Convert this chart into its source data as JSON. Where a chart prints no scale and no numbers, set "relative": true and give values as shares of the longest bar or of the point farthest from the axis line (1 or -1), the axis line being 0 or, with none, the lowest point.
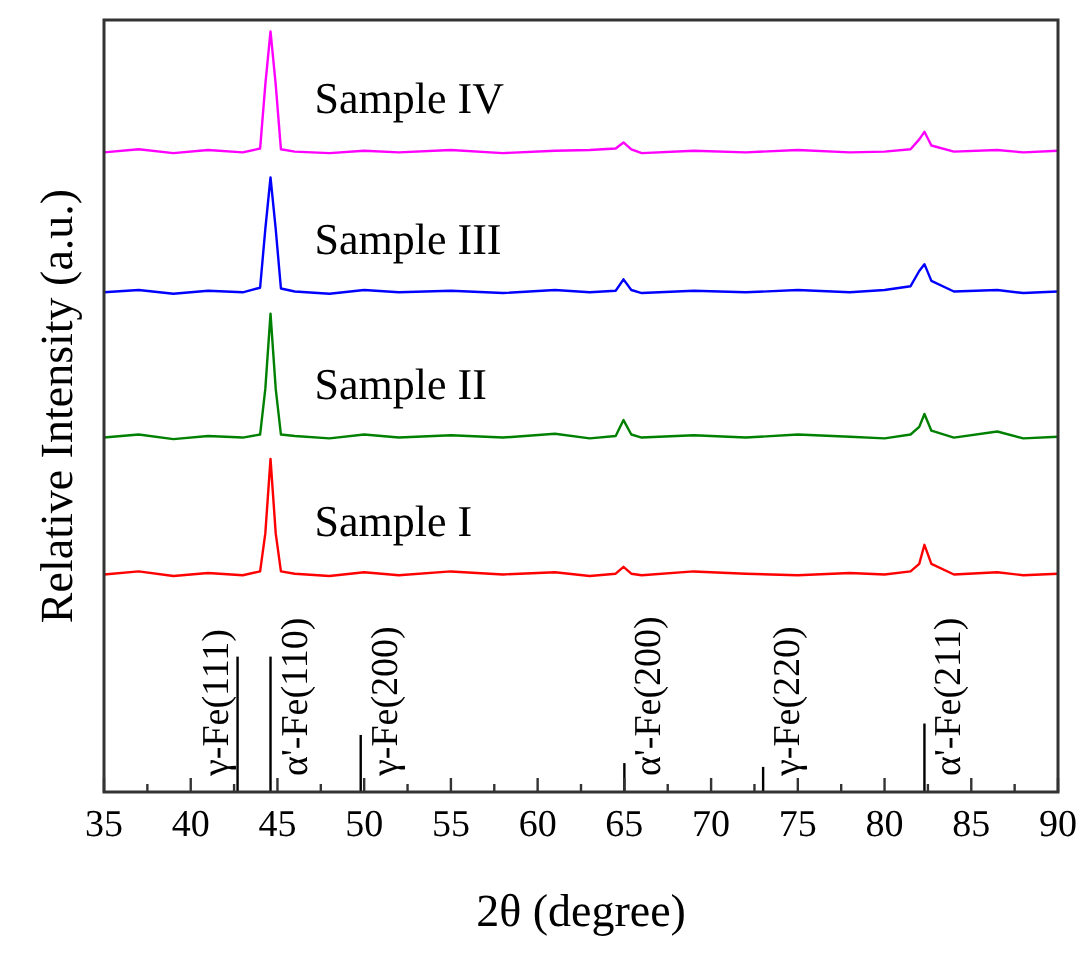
{
  "chart_data": {
    "type": "line",
    "relative": true,
    "xlabel": "2θ (degree)",
    "ylabel": "Relative Intensity (a.u.)",
    "xlim": [
      35,
      90
    ],
    "xticks": [
      35,
      {
        "value": 37.5,
        "label": null
      },
      40,
      {
        "value": 42.5,
        "label": null
      },
      45,
      {
        "value": 47.5,
        "label": null
      },
      50,
      {
        "value": 52.5,
        "label": null
      },
      55,
      {
        "value": 57.5,
        "label": null
      },
      60,
      {
        "value": 62.5,
        "label": null
      },
      65,
      {
        "value": 67.5,
        "label": null
      },
      70,
      {
        "value": 72.5,
        "label": null
      },
      75,
      {
        "value": 77.5,
        "label": null
      },
      80,
      {
        "value": 82.5,
        "label": null
      },
      85,
      {
        "value": 87.5,
        "label": null
      },
      90
    ],
    "x": [
      35,
      37,
      39,
      41,
      43,
      44.0,
      44.3,
      44.6,
      44.9,
      45.2,
      46,
      48,
      50,
      52,
      55,
      58,
      61,
      63,
      64.5,
      64.95,
      65.4,
      66,
      69,
      72,
      75,
      78,
      80,
      81.5,
      82.0,
      82.3,
      82.7,
      84,
      86.5,
      88,
      90
    ],
    "series": [
      {
        "name": "Sample I",
        "color": "#ff0000",
        "values": [
          0.286,
          0.29,
          0.284,
          0.288,
          0.285,
          0.29,
          0.34,
          0.438,
          0.34,
          0.29,
          0.287,
          0.284,
          0.289,
          0.285,
          0.29,
          0.286,
          0.289,
          0.284,
          0.287,
          0.296,
          0.287,
          0.285,
          0.29,
          0.287,
          0.285,
          0.288,
          0.286,
          0.29,
          0.3,
          0.325,
          0.3,
          0.286,
          0.289,
          0.285,
          0.287
        ]
      },
      {
        "name": "Sample II",
        "color": "#008000",
        "values": [
          0.466,
          0.47,
          0.464,
          0.468,
          0.466,
          0.47,
          0.53,
          0.629,
          0.53,
          0.47,
          0.468,
          0.465,
          0.47,
          0.466,
          0.469,
          0.466,
          0.471,
          0.465,
          0.468,
          0.489,
          0.47,
          0.466,
          0.469,
          0.466,
          0.47,
          0.467,
          0.465,
          0.47,
          0.48,
          0.497,
          0.475,
          0.466,
          0.474,
          0.465,
          0.467
        ]
      },
      {
        "name": "Sample III",
        "color": "#0000ff",
        "values": [
          0.657,
          0.66,
          0.655,
          0.659,
          0.657,
          0.663,
          0.74,
          0.808,
          0.74,
          0.662,
          0.658,
          0.655,
          0.66,
          0.657,
          0.659,
          0.656,
          0.66,
          0.657,
          0.659,
          0.674,
          0.66,
          0.656,
          0.659,
          0.657,
          0.66,
          0.657,
          0.66,
          0.665,
          0.685,
          0.694,
          0.672,
          0.658,
          0.66,
          0.656,
          0.658
        ]
      },
      {
        "name": "Sample IV",
        "color": "#ff00ff",
        "values": [
          0.841,
          0.845,
          0.84,
          0.844,
          0.841,
          0.846,
          0.93,
          1.0,
          0.93,
          0.845,
          0.842,
          0.84,
          0.843,
          0.841,
          0.844,
          0.84,
          0.843,
          0.844,
          0.846,
          0.854,
          0.845,
          0.84,
          0.843,
          0.841,
          0.844,
          0.841,
          0.842,
          0.845,
          0.858,
          0.868,
          0.85,
          0.842,
          0.844,
          0.841,
          0.843
        ]
      },
      {
        "type": "bar",
        "color": "#000000",
        "x": [
          42.7,
          44.6,
          49.8,
          65.0,
          73.0,
          82.3
        ],
        "values": [
          0.178,
          0.178,
          0.075,
          0.038,
          0.033,
          0.09
        ]
      }
    ],
    "annotations": [
      "γ-Fe(111)",
      "α'-Fe(110)",
      "γ-Fe(200)",
      "α'-Fe(200)",
      "γ-Fe(220)",
      "α'-Fe(211)"
    ]
  }
}
